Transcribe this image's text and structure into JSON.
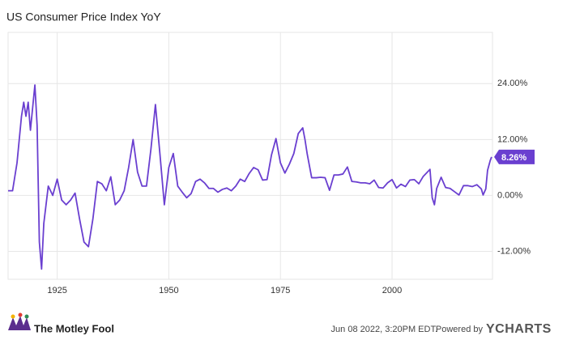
{
  "chart_data": {
    "type": "line",
    "title": "US Consumer Price Index YoY",
    "x": [
      1914,
      1915,
      1916,
      1917,
      1917.5,
      1918,
      1918.5,
      1919,
      1920,
      1920.5,
      1921,
      1921.5,
      1922,
      1923,
      1924,
      1925,
      1926,
      1927,
      1928,
      1929,
      1930,
      1931,
      1932,
      1933,
      1934,
      1935,
      1936,
      1937,
      1938,
      1939,
      1940,
      1941,
      1942,
      1943,
      1944,
      1945,
      1946,
      1947,
      1948,
      1949,
      1950,
      1951,
      1952,
      1953,
      1954,
      1955,
      1956,
      1957,
      1958,
      1959,
      1960,
      1961,
      1962,
      1963,
      1964,
      1965,
      1966,
      1967,
      1968,
      1969,
      1970,
      1971,
      1972,
      1973,
      1974,
      1975,
      1976,
      1977,
      1978,
      1979,
      1980,
      1980.5,
      1981,
      1982,
      1983,
      1984,
      1985,
      1986,
      1987,
      1988,
      1989,
      1990,
      1991,
      1992,
      1993,
      1994,
      1995,
      1996,
      1997,
      1998,
      1999,
      2000,
      2001,
      2002,
      2003,
      2004,
      2005,
      2006,
      2007,
      2008.5,
      2009,
      2009.5,
      2010,
      2011,
      2012,
      2013,
      2014,
      2015,
      2016,
      2017,
      2018,
      2019,
      2020,
      2020.4,
      2021,
      2021.4,
      2022,
      2022.3
    ],
    "values": [
      1,
      1,
      7,
      17,
      20,
      17,
      20,
      14,
      23.7,
      15,
      -10,
      -15.8,
      -6,
      2,
      0,
      3.5,
      -1,
      -2,
      -1,
      0.5,
      -5,
      -10,
      -11,
      -5,
      3,
      2.5,
      1,
      4,
      -2,
      -1,
      1,
      6,
      12,
      5,
      2,
      2,
      10,
      19.5,
      9,
      -2,
      6,
      9,
      2,
      0.7,
      -0.5,
      0.4,
      3,
      3.5,
      2.7,
      1.5,
      1.5,
      0.7,
      1.3,
      1.6,
      1,
      2,
      3.5,
      3,
      4.7,
      6,
      5.5,
      3.3,
      3.4,
      8.7,
      12.2,
      7,
      4.8,
      6.7,
      9,
      13.3,
      14.5,
      12,
      8.9,
      3.8,
      3.8,
      3.9,
      3.8,
      1.1,
      4.4,
      4.4,
      4.6,
      6.1,
      3,
      2.9,
      2.7,
      2.7,
      2.5,
      3.3,
      1.7,
      1.6,
      2.7,
      3.4,
      1.6,
      2.4,
      1.9,
      3.3,
      3.4,
      2.5,
      4.1,
      5.6,
      -0.5,
      -2,
      1.5,
      3.9,
      1.7,
      1.5,
      0.8,
      0.1,
      2.1,
      2.1,
      1.9,
      2.3,
      1.4,
      0.1,
      1.4,
      5.4,
      7.5,
      8.26
    ],
    "value_labels": [
      null,
      null,
      null,
      null,
      null,
      null,
      null,
      null,
      null,
      null,
      null,
      null,
      null,
      null,
      null,
      null,
      null,
      null,
      null,
      null,
      null,
      null,
      null,
      null,
      null,
      null,
      null,
      null,
      null,
      null,
      null,
      null,
      null,
      null,
      null,
      null,
      null,
      null,
      null,
      null,
      null,
      null,
      null,
      null,
      null,
      null,
      null,
      null,
      null,
      null,
      null,
      null,
      null,
      null,
      null,
      null,
      null,
      null,
      null,
      null,
      null,
      null,
      null,
      null,
      null,
      null,
      null,
      null,
      null,
      null,
      null,
      null,
      null,
      null,
      null,
      null,
      null,
      null,
      null,
      null,
      null,
      null,
      null,
      null,
      null,
      null,
      null,
      null,
      null,
      null,
      null,
      null,
      null,
      null,
      null,
      null,
      null,
      null,
      null,
      null,
      null,
      null,
      null,
      null,
      null,
      null,
      null,
      null,
      null,
      null,
      null,
      null,
      null,
      null,
      null,
      null,
      null,
      "8.26%"
    ],
    "color": "#6a3fd0",
    "xlim": [
      1914,
      2022.5
    ],
    "xticks": [
      1925,
      1950,
      1975,
      2000
    ],
    "ylim": [
      -18,
      35
    ],
    "yticks": [
      {
        "value": -12,
        "label": "-12.00%"
      },
      {
        "value": 0,
        "label": "0.00%"
      },
      {
        "value": 12,
        "label": "12.00%"
      },
      {
        "value": 24,
        "label": "24.00%"
      }
    ],
    "grid": true
  },
  "footer": {
    "brand": "The Motley Fool",
    "timestamp": "Jun 08 2022, 3:20PM EDT.",
    "powered_by": "Powered by",
    "provider": "YCHARTS"
  }
}
